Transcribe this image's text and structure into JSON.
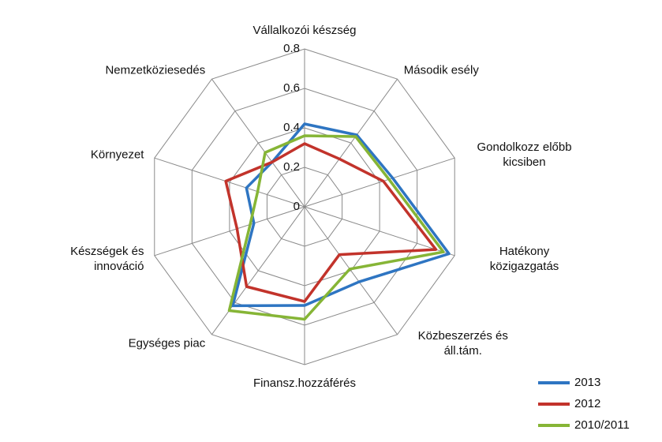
{
  "chart_data": {
    "type": "radar",
    "categories": [
      "Vállalkozói készség",
      "Második esély",
      "Gondolkozz előbb kicsiben",
      "Hatékony közigazgatás",
      "Közbeszerzés és áll.tám.",
      "Finansz.hozzáférés",
      "Egységes piac",
      "Készségek és innováció",
      "Környezet",
      "Nemzetköziesedés"
    ],
    "series": [
      {
        "name": "2013",
        "color": "#2e75c2",
        "values": [
          0.42,
          0.45,
          0.47,
          0.77,
          0.47,
          0.5,
          0.62,
          0.27,
          0.31,
          0.28
        ]
      },
      {
        "name": "2012",
        "color": "#c2332b",
        "values": [
          0.32,
          0.3,
          0.42,
          0.7,
          0.3,
          0.48,
          0.5,
          0.36,
          0.42,
          0.28
        ]
      },
      {
        "name": "2010/2011",
        "color": "#86b536",
        "values": [
          0.36,
          0.44,
          0.45,
          0.74,
          0.39,
          0.57,
          0.65,
          0.29,
          0.25,
          0.34
        ]
      }
    ],
    "ylim": [
      0,
      0.8
    ],
    "yticks": [
      0,
      0.2,
      0.4,
      0.6,
      0.8
    ],
    "grid": true,
    "legend": "lower right"
  }
}
